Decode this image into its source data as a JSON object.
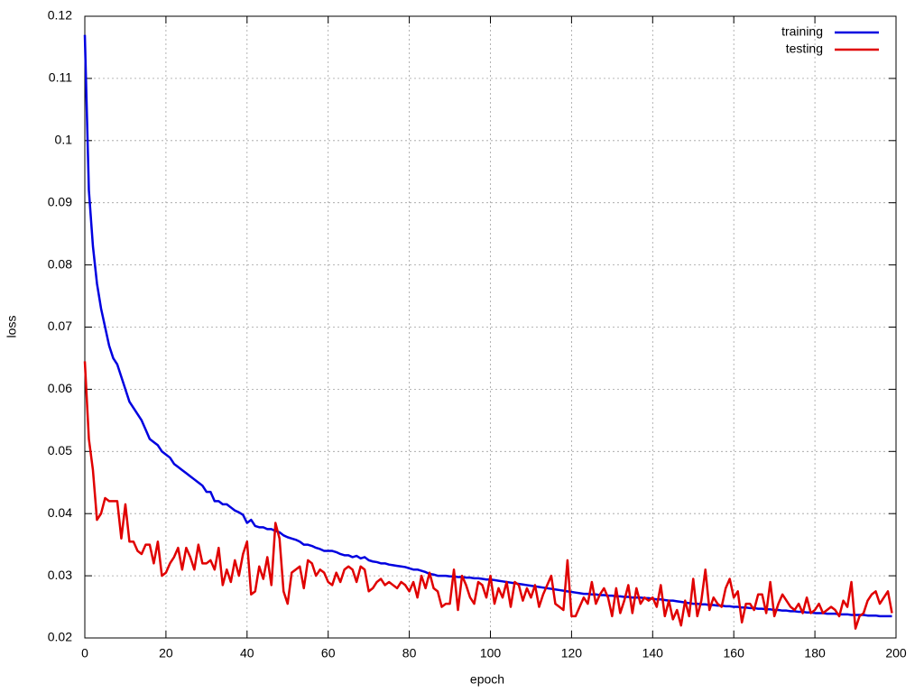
{
  "chart_data": {
    "type": "line",
    "xlabel": "epoch",
    "ylabel": "loss",
    "grid": true,
    "legend": "top right",
    "xlim": [
      0,
      200
    ],
    "xticks": [
      0,
      20,
      40,
      60,
      80,
      100,
      120,
      140,
      160,
      180,
      200
    ],
    "ylim": [
      0.02,
      0.12
    ],
    "yticks": [
      0.02,
      0.03,
      0.04,
      0.05,
      0.06,
      0.07,
      0.08,
      0.09,
      0.1,
      0.11,
      0.12
    ],
    "x": [
      0,
      1,
      2,
      3,
      4,
      5,
      6,
      7,
      8,
      9,
      10,
      11,
      12,
      13,
      14,
      15,
      16,
      17,
      18,
      19,
      20,
      21,
      22,
      23,
      24,
      25,
      26,
      27,
      28,
      29,
      30,
      31,
      32,
      33,
      34,
      35,
      36,
      37,
      38,
      39,
      40,
      41,
      42,
      43,
      44,
      45,
      46,
      47,
      48,
      49,
      50,
      51,
      52,
      53,
      54,
      55,
      56,
      57,
      58,
      59,
      60,
      61,
      62,
      63,
      64,
      65,
      66,
      67,
      68,
      69,
      70,
      71,
      72,
      73,
      74,
      75,
      76,
      77,
      78,
      79,
      80,
      81,
      82,
      83,
      84,
      85,
      86,
      87,
      88,
      89,
      90,
      91,
      92,
      93,
      94,
      95,
      96,
      97,
      98,
      99,
      100,
      101,
      102,
      103,
      104,
      105,
      106,
      107,
      108,
      109,
      110,
      111,
      112,
      113,
      114,
      115,
      116,
      117,
      118,
      119,
      120,
      121,
      122,
      123,
      124,
      125,
      126,
      127,
      128,
      129,
      130,
      131,
      132,
      133,
      134,
      135,
      136,
      137,
      138,
      139,
      140,
      141,
      142,
      143,
      144,
      145,
      146,
      147,
      148,
      149,
      150,
      151,
      152,
      153,
      154,
      155,
      156,
      157,
      158,
      159,
      160,
      161,
      162,
      163,
      164,
      165,
      166,
      167,
      168,
      169,
      170,
      171,
      172,
      173,
      174,
      175,
      176,
      177,
      178,
      179,
      180,
      181,
      182,
      183,
      184,
      185,
      186,
      187,
      188,
      189,
      190,
      191,
      192,
      193,
      194,
      195,
      196,
      197,
      198,
      199
    ],
    "series": [
      {
        "name": "training",
        "color": "#0000e0",
        "values": [
          0.117,
          0.092,
          0.083,
          0.077,
          0.073,
          0.07,
          0.067,
          0.065,
          0.064,
          0.062,
          0.06,
          0.058,
          0.057,
          0.056,
          0.055,
          0.0535,
          0.052,
          0.0515,
          0.051,
          0.05,
          0.0495,
          0.049,
          0.048,
          0.0475,
          0.047,
          0.0465,
          0.046,
          0.0455,
          0.045,
          0.0445,
          0.0435,
          0.0435,
          0.042,
          0.042,
          0.0415,
          0.0415,
          0.041,
          0.0405,
          0.0402,
          0.0398,
          0.0385,
          0.039,
          0.038,
          0.0378,
          0.0378,
          0.0375,
          0.0375,
          0.0372,
          0.037,
          0.0365,
          0.0362,
          0.036,
          0.0358,
          0.0355,
          0.035,
          0.035,
          0.0348,
          0.0345,
          0.0343,
          0.034,
          0.034,
          0.034,
          0.0338,
          0.0335,
          0.0333,
          0.0333,
          0.033,
          0.0332,
          0.0328,
          0.033,
          0.0325,
          0.0323,
          0.0322,
          0.032,
          0.032,
          0.0318,
          0.0317,
          0.0316,
          0.0315,
          0.0314,
          0.0312,
          0.031,
          0.031,
          0.0308,
          0.0306,
          0.0303,
          0.0302,
          0.03,
          0.03,
          0.03,
          0.0299,
          0.0299,
          0.0298,
          0.0298,
          0.0297,
          0.0297,
          0.0296,
          0.0296,
          0.0295,
          0.0294,
          0.0294,
          0.0293,
          0.0292,
          0.0291,
          0.029,
          0.0289,
          0.0288,
          0.0287,
          0.0286,
          0.0285,
          0.0284,
          0.0283,
          0.0282,
          0.0281,
          0.028,
          0.0279,
          0.0278,
          0.0277,
          0.0276,
          0.0275,
          0.0274,
          0.0273,
          0.0272,
          0.0271,
          0.0271,
          0.027,
          0.027,
          0.0269,
          0.0269,
          0.0268,
          0.0268,
          0.0267,
          0.0267,
          0.0266,
          0.0266,
          0.0265,
          0.0265,
          0.0265,
          0.0264,
          0.0264,
          0.0263,
          0.0262,
          0.0262,
          0.0261,
          0.026,
          0.026,
          0.0259,
          0.0258,
          0.0257,
          0.0256,
          0.0255,
          0.0255,
          0.0254,
          0.0254,
          0.0253,
          0.0253,
          0.0252,
          0.0252,
          0.0251,
          0.0251,
          0.025,
          0.025,
          0.0249,
          0.0249,
          0.0248,
          0.0248,
          0.0247,
          0.0247,
          0.0246,
          0.0246,
          0.0245,
          0.0245,
          0.0244,
          0.0244,
          0.0243,
          0.0243,
          0.0242,
          0.0242,
          0.0241,
          0.0241,
          0.024,
          0.024,
          0.024,
          0.0239,
          0.0239,
          0.0239,
          0.0238,
          0.0238,
          0.0238,
          0.0237,
          0.0237,
          0.0237,
          0.0237,
          0.0236,
          0.0236,
          0.0236,
          0.0235,
          0.0235,
          0.0235,
          0.0235
        ]
      },
      {
        "name": "testing",
        "color": "#e00000",
        "values": [
          0.0645,
          0.052,
          0.047,
          0.039,
          0.04,
          0.0425,
          0.042,
          0.042,
          0.042,
          0.036,
          0.0415,
          0.0355,
          0.0355,
          0.034,
          0.0335,
          0.035,
          0.035,
          0.032,
          0.0355,
          0.03,
          0.0305,
          0.032,
          0.033,
          0.0345,
          0.031,
          0.0345,
          0.033,
          0.031,
          0.035,
          0.032,
          0.032,
          0.0325,
          0.031,
          0.0345,
          0.0285,
          0.031,
          0.029,
          0.0325,
          0.03,
          0.0335,
          0.0355,
          0.027,
          0.0275,
          0.0315,
          0.0295,
          0.033,
          0.0285,
          0.0385,
          0.036,
          0.0275,
          0.0255,
          0.0305,
          0.031,
          0.0315,
          0.028,
          0.0325,
          0.032,
          0.03,
          0.031,
          0.0305,
          0.029,
          0.0285,
          0.0305,
          0.029,
          0.031,
          0.0315,
          0.031,
          0.029,
          0.0315,
          0.031,
          0.0275,
          0.028,
          0.029,
          0.0295,
          0.0285,
          0.029,
          0.0285,
          0.028,
          0.029,
          0.0285,
          0.0275,
          0.029,
          0.0265,
          0.03,
          0.028,
          0.0305,
          0.028,
          0.0275,
          0.025,
          0.0255,
          0.0255,
          0.031,
          0.0245,
          0.03,
          0.0285,
          0.0265,
          0.0255,
          0.029,
          0.0285,
          0.0265,
          0.03,
          0.0255,
          0.028,
          0.0265,
          0.029,
          0.025,
          0.029,
          0.0285,
          0.026,
          0.028,
          0.0265,
          0.0285,
          0.025,
          0.027,
          0.0285,
          0.03,
          0.0255,
          0.025,
          0.0245,
          0.0325,
          0.0235,
          0.0235,
          0.025,
          0.0265,
          0.0255,
          0.029,
          0.0255,
          0.027,
          0.028,
          0.0265,
          0.0235,
          0.028,
          0.024,
          0.026,
          0.0285,
          0.024,
          0.028,
          0.0255,
          0.0265,
          0.026,
          0.0265,
          0.025,
          0.0285,
          0.0235,
          0.026,
          0.023,
          0.0245,
          0.022,
          0.026,
          0.0235,
          0.0295,
          0.0235,
          0.026,
          0.031,
          0.0245,
          0.0265,
          0.0255,
          0.025,
          0.028,
          0.0295,
          0.0265,
          0.0275,
          0.0225,
          0.0255,
          0.0255,
          0.0245,
          0.027,
          0.027,
          0.024,
          0.029,
          0.0235,
          0.0255,
          0.027,
          0.026,
          0.025,
          0.0245,
          0.0255,
          0.024,
          0.0265,
          0.024,
          0.0245,
          0.0255,
          0.024,
          0.0245,
          0.025,
          0.0245,
          0.0235,
          0.026,
          0.025,
          0.029,
          0.0215,
          0.0235,
          0.024,
          0.026,
          0.027,
          0.0275,
          0.0255,
          0.0265,
          0.0275,
          0.024
        ]
      }
    ]
  }
}
